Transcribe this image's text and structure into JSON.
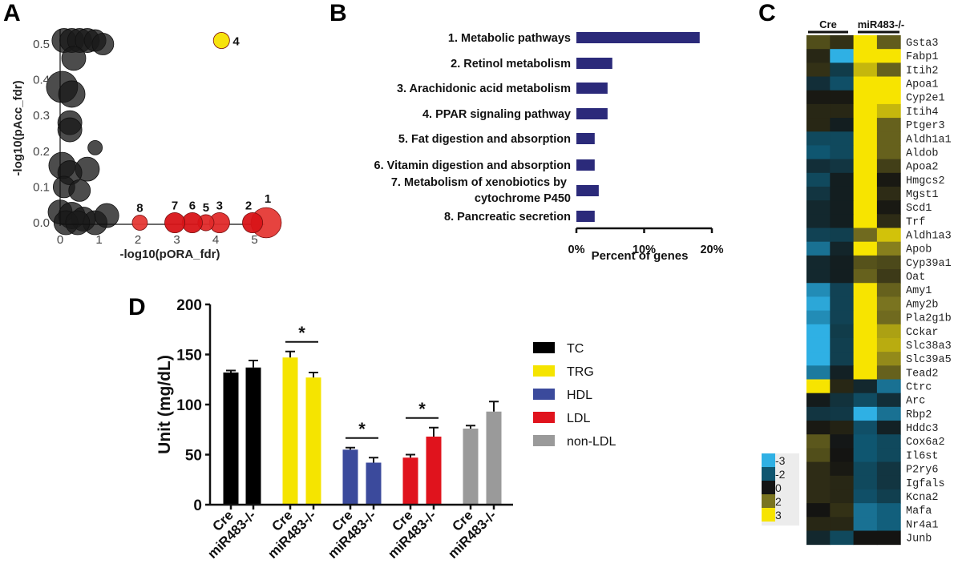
{
  "figure": {
    "panel_letters": [
      "A",
      "B",
      "C",
      "D"
    ]
  },
  "chart_data": [
    {
      "panel": "A",
      "type": "scatter",
      "title": "",
      "xlabel": "-log10(pORA_fdr)",
      "ylabel": "-log10(pAcc_fdr)",
      "xlim": [
        0,
        5.5
      ],
      "ylim": [
        0,
        0.52
      ],
      "xticks": [
        "0",
        "1",
        "2",
        "3",
        "4",
        "5"
      ],
      "yticks": [
        "0.0",
        "0.1",
        "0.2",
        "0.3",
        "0.4",
        "0.5"
      ],
      "highlighted_points": [
        {
          "label": "1",
          "x": 5.3,
          "y": 0.0,
          "size": 3,
          "color": "#e53935"
        },
        {
          "label": "2",
          "x": 4.95,
          "y": 0.0,
          "size": 2,
          "color": "#d81418"
        },
        {
          "label": "3",
          "x": 4.1,
          "y": 0.0,
          "size": 2,
          "color": "#e02a2a"
        },
        {
          "label": "4",
          "x": 4.15,
          "y": 0.51,
          "size": 1.6,
          "color": "#f7e200"
        },
        {
          "label": "5",
          "x": 3.75,
          "y": 0.0,
          "size": 1.6,
          "color": "#e02a2a"
        },
        {
          "label": "6",
          "x": 3.4,
          "y": 0.0,
          "size": 2,
          "color": "#d81418"
        },
        {
          "label": "7",
          "x": 2.95,
          "y": 0.0,
          "size": 2,
          "color": "#d81418"
        },
        {
          "label": "8",
          "x": 2.05,
          "y": 0.0,
          "size": 1.5,
          "color": "#e53935"
        }
      ],
      "background_points": [
        {
          "x": 0.1,
          "y": 0.51,
          "size": 2
        },
        {
          "x": 0.3,
          "y": 0.51,
          "size": 2
        },
        {
          "x": 0.5,
          "y": 0.51,
          "size": 2
        },
        {
          "x": 0.7,
          "y": 0.51,
          "size": 2
        },
        {
          "x": 0.9,
          "y": 0.51,
          "size": 1.8
        },
        {
          "x": 1.1,
          "y": 0.5,
          "size": 1.8
        },
        {
          "x": 0.35,
          "y": 0.46,
          "size": 2
        },
        {
          "x": 0.05,
          "y": 0.38,
          "size": 2.6
        },
        {
          "x": 0.3,
          "y": 0.36,
          "size": 2.2
        },
        {
          "x": 0.25,
          "y": 0.28,
          "size": 2
        },
        {
          "x": 0.25,
          "y": 0.26,
          "size": 2
        },
        {
          "x": 0.9,
          "y": 0.21,
          "size": 1.2
        },
        {
          "x": 0.05,
          "y": 0.16,
          "size": 2.2
        },
        {
          "x": 0.7,
          "y": 0.15,
          "size": 2
        },
        {
          "x": 0.25,
          "y": 0.14,
          "size": 2
        },
        {
          "x": 0.1,
          "y": 0.1,
          "size": 1.8
        },
        {
          "x": 0.5,
          "y": 0.09,
          "size": 1.8
        },
        {
          "x": 0.0,
          "y": 0.03,
          "size": 2
        },
        {
          "x": 0.3,
          "y": 0.02,
          "size": 2.2
        },
        {
          "x": 0.6,
          "y": 0.01,
          "size": 2
        },
        {
          "x": 0.9,
          "y": 0.0,
          "size": 2
        },
        {
          "x": 1.2,
          "y": 0.02,
          "size": 2
        },
        {
          "x": 0.15,
          "y": 0.0,
          "size": 2
        },
        {
          "x": 0.45,
          "y": 0.0,
          "size": 2
        }
      ]
    },
    {
      "panel": "B",
      "type": "bar",
      "orientation": "horizontal",
      "title": "",
      "xlabel": "Percent of genes",
      "ylabel": "",
      "xlim": [
        0,
        20
      ],
      "xticks": [
        "0%",
        "10%",
        "20%"
      ],
      "bar_color": "#2b2a7a",
      "categories": [
        "1. Metabolic pathways",
        "2. Retinol metabolism",
        "3. Arachidonic acid metabolism",
        "4. PPAR signaling pathway",
        "5. Fat digestion and absorption",
        "6. Vitamin digestion and absorption",
        "7. Metabolism of xenobiotics by|cytochrome P450",
        "8. Pancreatic secretion"
      ],
      "values": [
        18.2,
        5.3,
        4.6,
        4.6,
        2.7,
        2.7,
        3.3,
        2.7
      ]
    },
    {
      "panel": "C",
      "type": "heatmap",
      "column_groups": [
        {
          "label": "Cre",
          "columns": 2
        },
        {
          "label": "miR483-/-",
          "columns": 2
        }
      ],
      "colorbar": {
        "ticks": [
          "-3",
          "-2",
          "0",
          "2",
          "3"
        ],
        "colors": [
          "#2fb0e4",
          "#0f5670",
          "#141414",
          "#7a7420",
          "#f7e400"
        ]
      },
      "rows": [
        "Gsta3",
        "Fabp1",
        "Itih2",
        "Apoa1",
        "Cyp2e1",
        "Itih4",
        "Ptger3",
        "Aldh1a1",
        "Aldob",
        "Apoa2",
        "Hmgcs2",
        "Mgst1",
        "Scd1",
        "Trf",
        "Aldh1a3",
        "Apob",
        "Cyp39a1",
        "Oat",
        "Amy1",
        "Amy2b",
        "Pla2g1b",
        "Cckar",
        "Slc38a3",
        "Slc39a5",
        "Tead2",
        "Ctrc",
        "Arc",
        "Rbp2",
        "Hddc3",
        "Cox6a2",
        "Il6st",
        "P2ry6",
        "Igfals",
        "Kcna2",
        "Mafa",
        "Nr4a1",
        "Junb"
      ],
      "values": [
        [
          1.2,
          0.6,
          3,
          1.5
        ],
        [
          0.4,
          -3,
          3,
          3
        ],
        [
          0.6,
          -1.2,
          2.6,
          1.6
        ],
        [
          -0.8,
          -1.8,
          3,
          3
        ],
        [
          0.1,
          0.1,
          3,
          3
        ],
        [
          0.4,
          0.4,
          3,
          2.6
        ],
        [
          0.4,
          -0.3,
          3,
          1.6
        ],
        [
          -1.6,
          -1.6,
          3,
          1.6
        ],
        [
          -2,
          -1.6,
          3,
          1.6
        ],
        [
          -0.8,
          -1.0,
          3,
          0.9
        ],
        [
          -1.6,
          -0.3,
          3,
          0.1
        ],
        [
          -1.0,
          -0.3,
          3,
          0.5
        ],
        [
          -0.6,
          -0.3,
          3,
          0.1
        ],
        [
          -0.6,
          -0.3,
          3,
          0.5
        ],
        [
          -1.4,
          -1.3,
          1.8,
          2.7
        ],
        [
          -2.3,
          -0.5,
          3,
          2.1
        ],
        [
          -0.6,
          -0.3,
          1.3,
          1.1
        ],
        [
          -0.6,
          -0.3,
          1.6,
          0.8
        ],
        [
          -2.6,
          -1.4,
          3,
          1.6
        ],
        [
          -2.9,
          -1.4,
          3,
          2.0
        ],
        [
          -2.6,
          -1.4,
          3,
          1.8
        ],
        [
          -3,
          -1.2,
          3,
          2.4
        ],
        [
          -3,
          -1.3,
          3,
          2.5
        ],
        [
          -3,
          -1.3,
          3,
          2.2
        ],
        [
          -2.4,
          -0.4,
          3,
          1.6
        ],
        [
          3,
          0.4,
          -0.6,
          -2.3
        ],
        [
          -0.2,
          -0.9,
          -1.7,
          -0.8
        ],
        [
          -1.0,
          -1.1,
          -3,
          -2.3
        ],
        [
          0.1,
          0.3,
          -1.8,
          -0.4
        ],
        [
          1.4,
          -0.1,
          -2.0,
          -1.6
        ],
        [
          1.2,
          0.0,
          -2.0,
          -1.6
        ],
        [
          0.5,
          0.1,
          -1.6,
          -1.0
        ],
        [
          0.5,
          0.4,
          -1.6,
          -1.0
        ],
        [
          0.5,
          0.4,
          -1.8,
          -1.3
        ],
        [
          0.0,
          0.6,
          -2.3,
          -2.1
        ],
        [
          0.4,
          0.4,
          -2.3,
          -2.1
        ],
        [
          -0.6,
          -1.6,
          0.0,
          0.0
        ]
      ]
    },
    {
      "panel": "D",
      "type": "bar",
      "title": "",
      "xlabel": "",
      "ylabel": "Unit (mg/dL)",
      "ylim": [
        0,
        200
      ],
      "yticks": [
        "0",
        "50",
        "100",
        "150",
        "200"
      ],
      "categories": [
        "Cre",
        "miR483-/-"
      ],
      "series": [
        {
          "name": "TC",
          "color": "#000000",
          "values": [
            132,
            137
          ],
          "errors": [
            2,
            7
          ],
          "significant": false
        },
        {
          "name": "TRG",
          "color": "#f5e400",
          "values": [
            147,
            127
          ],
          "errors": [
            6,
            5
          ],
          "significant": true
        },
        {
          "name": "HDL",
          "color": "#3b4a9c",
          "values": [
            55,
            42
          ],
          "errors": [
            2,
            5
          ],
          "significant": true
        },
        {
          "name": "LDL",
          "color": "#e0131d",
          "values": [
            47,
            68
          ],
          "errors": [
            3,
            9
          ],
          "significant": true
        },
        {
          "name": "non-LDL",
          "color": "#9a9a9a",
          "values": [
            76,
            93
          ],
          "errors": [
            3,
            10
          ],
          "significant": false
        }
      ],
      "significance_marker": "*",
      "legend": {
        "position": "right",
        "entries": [
          "TC",
          "TRG",
          "HDL",
          "LDL",
          "non-LDL"
        ]
      }
    }
  ]
}
